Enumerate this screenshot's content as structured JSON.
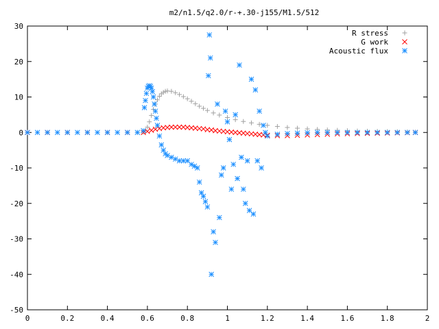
{
  "chart_data": {
    "type": "scatter",
    "title": "m2/n1.5/q2.0/r-+.30-j155/M1.5/512",
    "xlabel": "",
    "ylabel": "",
    "xlim": [
      0,
      2
    ],
    "ylim": [
      -50,
      30
    ],
    "xticks": [
      "0",
      "0.2",
      "0.4",
      "0.6",
      "0.8",
      "1",
      "1.2",
      "1.4",
      "1.6",
      "1.8",
      "2"
    ],
    "yticks": [
      "30",
      "20",
      "10",
      "0",
      "-10",
      "-20",
      "-30",
      "-40",
      "-50"
    ],
    "grid": false,
    "legend_position": "top-right",
    "series": [
      {
        "name": "R stress",
        "marker": "plus",
        "color": "#a0a0a0",
        "x": [
          0,
          0.1,
          0.2,
          0.3,
          0.4,
          0.5,
          0.55,
          0.58,
          0.59,
          0.6,
          0.61,
          0.62,
          0.63,
          0.64,
          0.65,
          0.66,
          0.67,
          0.68,
          0.69,
          0.7,
          0.72,
          0.74,
          0.76,
          0.78,
          0.8,
          0.82,
          0.84,
          0.86,
          0.88,
          0.9,
          0.93,
          0.96,
          1.0,
          1.04,
          1.08,
          1.12,
          1.16,
          1.2,
          1.25,
          1.3,
          1.35,
          1.4,
          1.45,
          1.5,
          1.55,
          1.6,
          1.65,
          1.7,
          1.75,
          1.8,
          1.85,
          1.9,
          1.94
        ],
        "y": [
          0,
          0,
          0,
          0,
          0,
          0,
          0,
          0.1,
          0.5,
          1.5,
          3,
          4.8,
          6.5,
          8,
          9.2,
          10.2,
          10.9,
          11.3,
          11.6,
          11.7,
          11.6,
          11.2,
          10.7,
          10.1,
          9.5,
          8.8,
          8.1,
          7.4,
          6.8,
          6.2,
          5.5,
          4.9,
          4.2,
          3.6,
          3.1,
          2.7,
          2.3,
          2.0,
          1.7,
          1.4,
          1.2,
          1.0,
          0.85,
          0.7,
          0.6,
          0.5,
          0.4,
          0.35,
          0.3,
          0.25,
          0.2,
          0.15,
          0.1
        ]
      },
      {
        "name": "G work",
        "marker": "cross",
        "color": "#ff0000",
        "x": [
          0,
          0.1,
          0.2,
          0.3,
          0.4,
          0.5,
          0.58,
          0.6,
          0.62,
          0.64,
          0.66,
          0.68,
          0.7,
          0.72,
          0.74,
          0.76,
          0.78,
          0.8,
          0.82,
          0.84,
          0.86,
          0.88,
          0.9,
          0.92,
          0.94,
          0.96,
          0.98,
          1.0,
          1.02,
          1.04,
          1.06,
          1.08,
          1.1,
          1.12,
          1.14,
          1.16,
          1.18,
          1.2,
          1.25,
          1.3,
          1.35,
          1.4,
          1.45,
          1.5,
          1.55,
          1.6,
          1.65,
          1.7,
          1.75,
          1.8,
          1.85,
          1.9,
          1.94
        ],
        "y": [
          0,
          0,
          0,
          0,
          0,
          0,
          0,
          0.3,
          0.6,
          0.9,
          1.1,
          1.3,
          1.4,
          1.5,
          1.5,
          1.5,
          1.5,
          1.4,
          1.3,
          1.2,
          1.1,
          1.0,
          0.8,
          0.7,
          0.5,
          0.4,
          0.3,
          0.2,
          0.1,
          0.0,
          -0.1,
          -0.2,
          -0.3,
          -0.4,
          -0.5,
          -0.6,
          -0.7,
          -0.8,
          -0.9,
          -0.9,
          -0.8,
          -0.7,
          -0.6,
          -0.5,
          -0.4,
          -0.35,
          -0.3,
          -0.25,
          -0.2,
          -0.15,
          -0.1,
          -0.05,
          0
        ]
      },
      {
        "name": "Acoustic flux",
        "marker": "star",
        "color": "#1e90ff",
        "x": [
          0,
          0.05,
          0.1,
          0.15,
          0.2,
          0.25,
          0.3,
          0.35,
          0.4,
          0.45,
          0.5,
          0.55,
          0.58,
          0.585,
          0.59,
          0.595,
          0.6,
          0.605,
          0.61,
          0.615,
          0.62,
          0.625,
          0.63,
          0.635,
          0.64,
          0.645,
          0.65,
          0.66,
          0.67,
          0.68,
          0.69,
          0.7,
          0.72,
          0.74,
          0.76,
          0.78,
          0.8,
          0.82,
          0.835,
          0.85,
          0.86,
          0.87,
          0.88,
          0.89,
          0.9,
          0.905,
          0.91,
          0.915,
          0.92,
          0.93,
          0.94,
          0.95,
          0.96,
          0.97,
          0.98,
          0.99,
          1.0,
          1.01,
          1.02,
          1.03,
          1.04,
          1.05,
          1.06,
          1.07,
          1.08,
          1.09,
          1.1,
          1.11,
          1.12,
          1.13,
          1.14,
          1.15,
          1.16,
          1.17,
          1.18,
          1.19,
          1.2,
          1.25,
          1.3,
          1.35,
          1.4,
          1.45,
          1.5,
          1.55,
          1.6,
          1.65,
          1.7,
          1.75,
          1.8,
          1.85,
          1.9,
          1.94
        ],
        "y": [
          0,
          0,
          0,
          0,
          0,
          0,
          0,
          0,
          0,
          0,
          0,
          0,
          0.5,
          7,
          9,
          11,
          12.5,
          13,
          13.2,
          13,
          12.5,
          11.5,
          10,
          8,
          6,
          4,
          2,
          -1,
          -3.5,
          -5,
          -6,
          -6.5,
          -7,
          -7.5,
          -8,
          -8,
          -8,
          -9,
          -9.5,
          -10,
          -14,
          -17,
          -18,
          -19.5,
          -21,
          16,
          27.5,
          21,
          -40,
          -28,
          -31,
          8,
          -24,
          -12,
          -10,
          6,
          3,
          -2,
          -16,
          -9,
          5,
          -13,
          19,
          -7,
          -16,
          -20,
          -8,
          -22,
          15,
          -23,
          12,
          -8,
          6,
          -10,
          2,
          0,
          -1,
          -0.5,
          -0.3,
          -0.2,
          -0.1,
          0,
          0,
          0,
          0,
          0,
          0,
          0,
          0,
          0,
          0,
          0
        ]
      }
    ]
  }
}
